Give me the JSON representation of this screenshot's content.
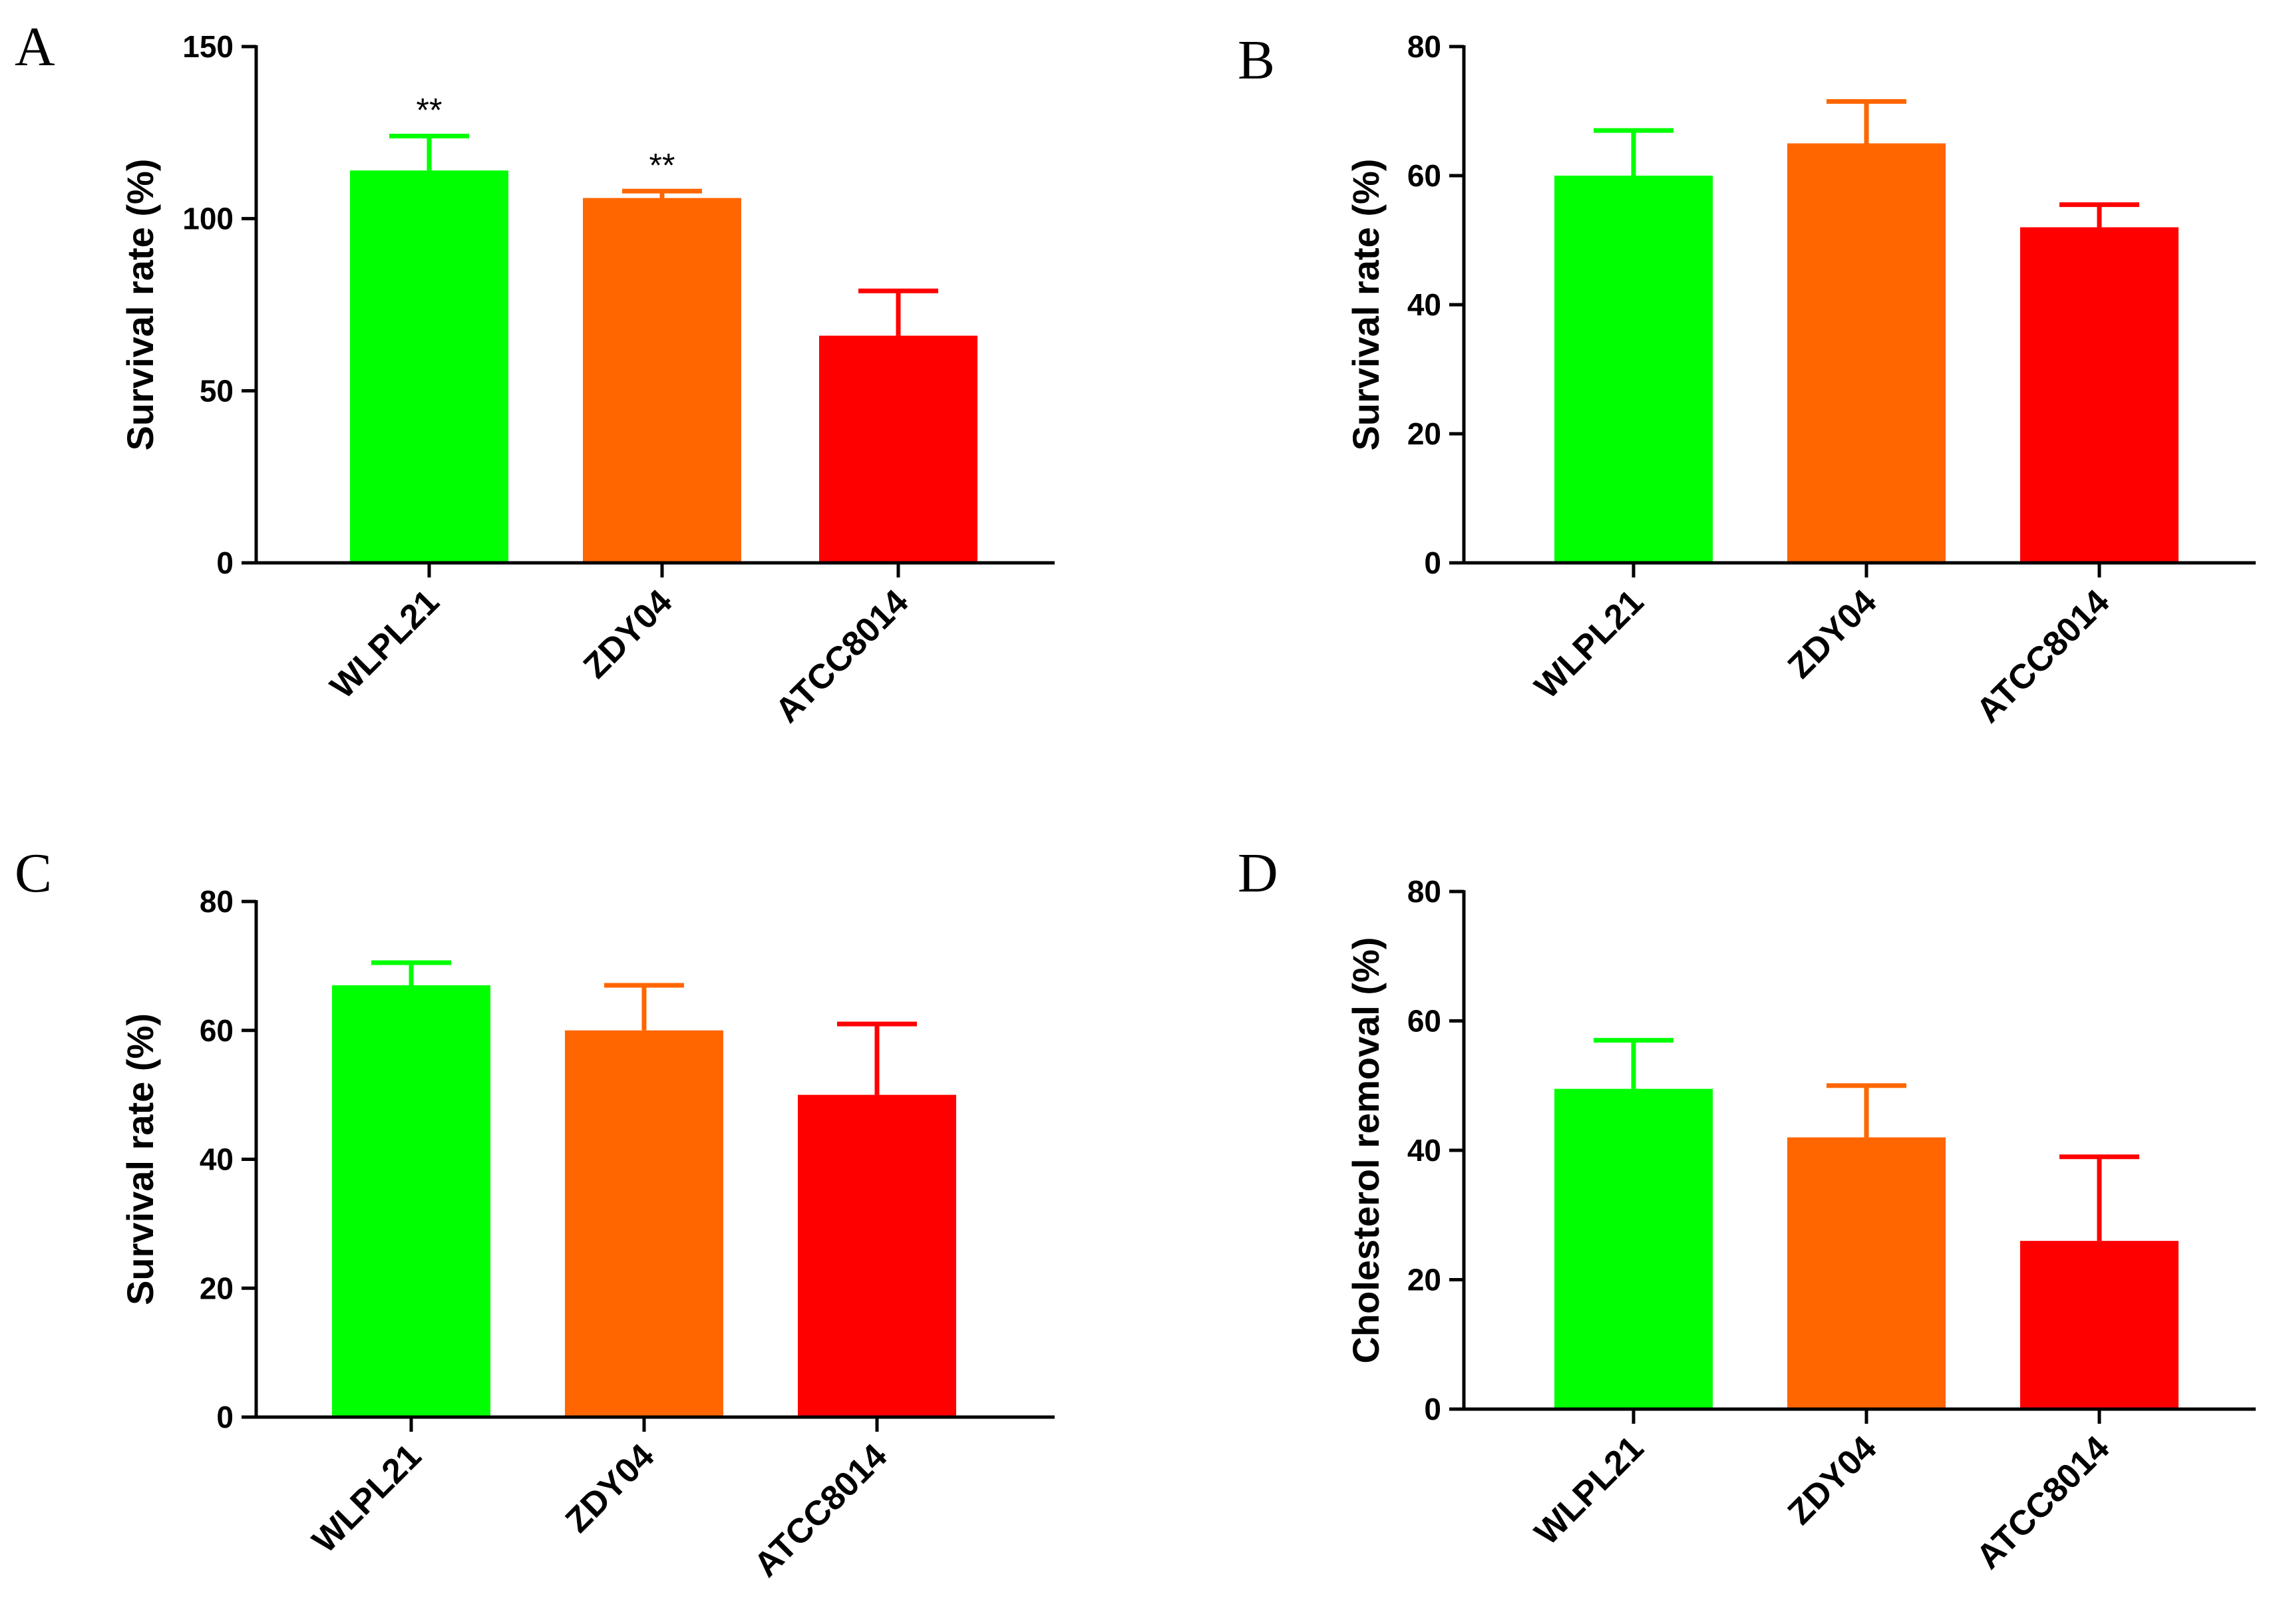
{
  "chart_data": [
    {
      "panel": "A",
      "type": "bar",
      "categories": [
        "WLPL21",
        "ZDY04",
        "ATCC8014"
      ],
      "values": [
        114,
        106,
        66
      ],
      "errors": [
        10,
        2,
        13
      ],
      "annotations": [
        "**",
        "**",
        ""
      ],
      "colors": [
        "#00ff00",
        "#ff6600",
        "#ff0000"
      ],
      "ylabel": "Survival rate (%)",
      "ylim": [
        0,
        150
      ],
      "yticks": [
        0,
        50,
        100,
        150
      ]
    },
    {
      "panel": "B",
      "type": "bar",
      "categories": [
        "WLPL21",
        "ZDY04",
        "ATCC8014"
      ],
      "values": [
        60,
        65,
        52
      ],
      "errors": [
        7,
        6.5,
        3.5
      ],
      "annotations": [
        "",
        "",
        ""
      ],
      "colors": [
        "#00ff00",
        "#ff6600",
        "#ff0000"
      ],
      "ylabel": "Survival rate (%)",
      "ylim": [
        0,
        80
      ],
      "yticks": [
        0,
        20,
        40,
        60,
        80
      ]
    },
    {
      "panel": "C",
      "type": "bar",
      "categories": [
        "WLPL21",
        "ZDY04",
        "ATCC8014"
      ],
      "values": [
        67,
        60,
        50
      ],
      "errors": [
        3.5,
        7,
        11
      ],
      "annotations": [
        "",
        "",
        ""
      ],
      "colors": [
        "#00ff00",
        "#ff6600",
        "#ff0000"
      ],
      "ylabel": "Survival rate (%)",
      "ylim": [
        0,
        80
      ],
      "yticks": [
        0,
        20,
        40,
        60,
        80
      ]
    },
    {
      "panel": "D",
      "type": "bar",
      "categories": [
        "WLPL21",
        "ZDY04",
        "ATCC8014"
      ],
      "values": [
        49.5,
        42,
        26
      ],
      "errors": [
        7.5,
        8,
        13
      ],
      "annotations": [
        "",
        "",
        ""
      ],
      "colors": [
        "#00ff00",
        "#ff6600",
        "#ff0000"
      ],
      "ylabel": "Cholesterol removal (%)",
      "ylim": [
        0,
        80
      ],
      "yticks": [
        0,
        20,
        40,
        60,
        80
      ]
    }
  ]
}
